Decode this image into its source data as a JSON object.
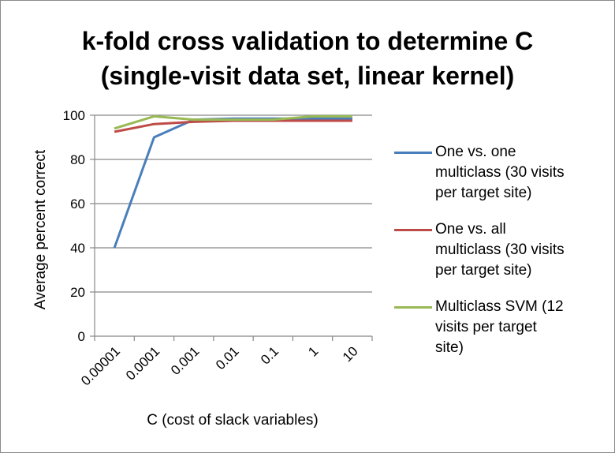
{
  "chart_data": {
    "type": "line",
    "title_line1": "k-fold cross validation to determine C",
    "title_line2": "(single-visit data set, linear kernel)",
    "xlabel": "C (cost of slack variables)",
    "ylabel": "Average percent correct",
    "categories": [
      "0.00001",
      "0.0001",
      "0.001",
      "0.01",
      "0.1",
      "1",
      "10"
    ],
    "ylim": [
      0,
      100
    ],
    "yticks": [
      "0",
      "20",
      "40",
      "60",
      "80",
      "100"
    ],
    "grid": true,
    "legend_position": "right",
    "series": [
      {
        "name": "One vs. one multiclass (30 visits per target site)",
        "name_lines": "One vs. one\nmulticlass (30 visits\nper target site)",
        "color": "#4a7ebb",
        "values": [
          40,
          90,
          98,
          98.5,
          98.5,
          98.5,
          98.5
        ]
      },
      {
        "name": "One vs. all multiclass (30 visits per target site)",
        "name_lines": "One vs. all\nmulticlass (30 visits\nper target site)",
        "color": "#be4b48",
        "values": [
          92.5,
          96,
          97,
          97.5,
          97.5,
          97.5,
          97.5
        ]
      },
      {
        "name": "Multiclass SVM (12 visits per target site)",
        "name_lines": "Multiclass SVM (12\nvisits per target\nsite)",
        "color": "#98b954",
        "values": [
          94,
          99.5,
          98,
          98,
          98,
          99.5,
          99.5
        ]
      }
    ]
  }
}
